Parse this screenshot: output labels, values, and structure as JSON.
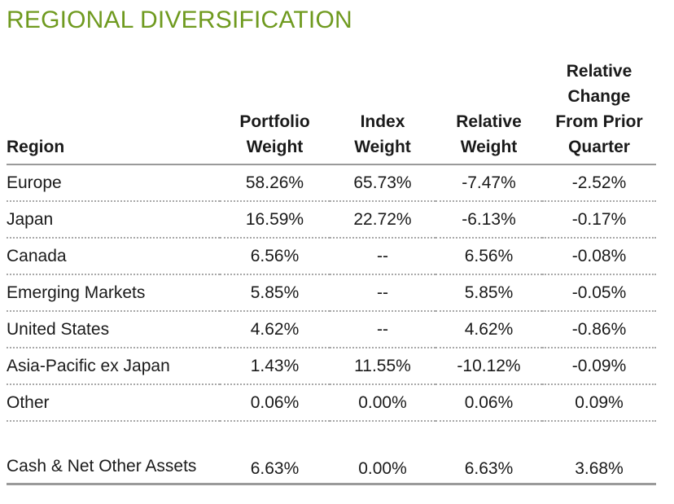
{
  "title": "REGIONAL DIVERSIFICATION",
  "colors": {
    "title": "#6f9a1f",
    "rule": "#9a9a9a"
  },
  "table": {
    "headers": {
      "region": "Region",
      "portfolio_weight": [
        "Portfolio",
        "Weight"
      ],
      "index_weight": [
        "Index",
        "Weight"
      ],
      "relative_weight": [
        "Relative",
        "Weight"
      ],
      "relative_change": [
        "Relative",
        "Change",
        "From Prior",
        "Quarter"
      ]
    },
    "rows": [
      {
        "region": "Europe",
        "portfolio_weight": "58.26%",
        "index_weight": "65.73%",
        "relative_weight": "-7.47%",
        "relative_change": "-2.52%"
      },
      {
        "region": "Japan",
        "portfolio_weight": "16.59%",
        "index_weight": "22.72%",
        "relative_weight": "-6.13%",
        "relative_change": "-0.17%"
      },
      {
        "region": "Canada",
        "portfolio_weight": "6.56%",
        "index_weight": "--",
        "relative_weight": "6.56%",
        "relative_change": "-0.08%"
      },
      {
        "region": "Emerging Markets",
        "portfolio_weight": "5.85%",
        "index_weight": "--",
        "relative_weight": "5.85%",
        "relative_change": "-0.05%"
      },
      {
        "region": "United States",
        "portfolio_weight": "4.62%",
        "index_weight": "--",
        "relative_weight": "4.62%",
        "relative_change": "-0.86%"
      },
      {
        "region": "Asia-Pacific ex Japan",
        "portfolio_weight": "1.43%",
        "index_weight": "11.55%",
        "relative_weight": "-10.12%",
        "relative_change": "-0.09%"
      },
      {
        "region": "Other",
        "portfolio_weight": "0.06%",
        "index_weight": "0.00%",
        "relative_weight": "0.06%",
        "relative_change": "0.09%"
      },
      {
        "region": "Cash & Net Other Assets",
        "portfolio_weight": "6.63%",
        "index_weight": "0.00%",
        "relative_weight": "6.63%",
        "relative_change": "3.68%"
      }
    ]
  }
}
